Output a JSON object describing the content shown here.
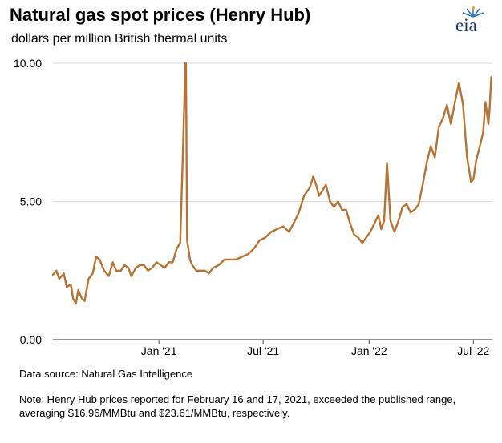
{
  "header": {
    "title": "Natural gas spot prices (Henry Hub)",
    "subtitle": "dollars per million British thermal units",
    "logo_text": "eia"
  },
  "footer": {
    "source": "Data source: Natural Gas Intelligence",
    "note": "Note: Henry Hub prices reported for February 16 and 17, 2021, exceeded the published range, averaging $16.96/MMBtu and $23.61/MMBtu, respectively."
  },
  "colors": {
    "line": "#B87333",
    "axis": "#555555",
    "grid": "#d9d9d9",
    "logo": "#1a3a6b"
  },
  "chart_data": {
    "type": "line",
    "xlabel": "",
    "ylabel": "",
    "ylim": [
      0,
      10
    ],
    "xlim": [
      "2020-07-01",
      "2022-08-03"
    ],
    "y_ticks": [
      {
        "value": 0,
        "label": "0.00"
      },
      {
        "value": 5,
        "label": "5.00"
      },
      {
        "value": 10,
        "label": "10.00"
      }
    ],
    "x_ticks": [
      {
        "value": "2021-01-01",
        "label": "Jan '21"
      },
      {
        "value": "2021-07-01",
        "label": "Jul '21"
      },
      {
        "value": "2022-01-01",
        "label": "Jan '22"
      },
      {
        "value": "2022-07-01",
        "label": "Jul '22"
      }
    ],
    "grid": false,
    "series": [
      {
        "x": [
          "2020-07-01",
          "2020-07-07",
          "2020-07-12",
          "2020-07-20",
          "2020-07-25",
          "2020-08-01",
          "2020-08-05",
          "2020-08-10",
          "2020-08-14",
          "2020-08-20",
          "2020-08-25",
          "2020-09-01",
          "2020-09-08",
          "2020-09-14",
          "2020-09-20",
          "2020-09-28",
          "2020-10-06",
          "2020-10-13",
          "2020-10-19",
          "2020-10-27",
          "2020-11-02",
          "2020-11-09",
          "2020-11-14",
          "2020-11-22",
          "2020-11-29",
          "2020-12-06",
          "2020-12-13",
          "2020-12-20",
          "2020-12-28",
          "2021-01-04",
          "2021-01-11",
          "2021-01-18",
          "2021-01-25",
          "2021-02-01",
          "2021-02-07",
          "2021-02-12",
          "2021-02-16",
          "2021-02-17",
          "2021-02-19",
          "2021-02-24",
          "2021-02-28",
          "2021-03-07",
          "2021-03-15",
          "2021-03-22",
          "2021-03-29",
          "2021-04-05",
          "2021-04-15",
          "2021-04-25",
          "2021-05-05",
          "2021-05-15",
          "2021-05-25",
          "2021-06-05",
          "2021-06-15",
          "2021-06-25",
          "2021-07-05",
          "2021-07-15",
          "2021-07-25",
          "2021-08-05",
          "2021-08-15",
          "2021-08-25",
          "2021-09-01",
          "2021-09-10",
          "2021-09-20",
          "2021-09-26",
          "2021-10-01",
          "2021-10-06",
          "2021-10-12",
          "2021-10-18",
          "2021-10-25",
          "2021-11-01",
          "2021-11-08",
          "2021-11-15",
          "2021-11-22",
          "2021-11-29",
          "2021-12-06",
          "2021-12-13",
          "2021-12-20",
          "2021-12-27",
          "2022-01-03",
          "2022-01-10",
          "2022-01-17",
          "2022-01-22",
          "2022-01-27",
          "2022-02-01",
          "2022-02-07",
          "2022-02-14",
          "2022-02-21",
          "2022-02-28",
          "2022-03-07",
          "2022-03-14",
          "2022-03-21",
          "2022-03-28",
          "2022-04-04",
          "2022-04-11",
          "2022-04-18",
          "2022-04-25",
          "2022-05-02",
          "2022-05-09",
          "2022-05-16",
          "2022-05-23",
          "2022-05-30",
          "2022-06-06",
          "2022-06-13",
          "2022-06-20",
          "2022-06-27",
          "2022-07-01",
          "2022-07-06",
          "2022-07-11",
          "2022-07-18",
          "2022-07-22",
          "2022-07-27",
          "2022-07-29",
          "2022-08-01"
        ],
        "values": [
          2.35,
          2.5,
          2.2,
          2.4,
          1.9,
          2.0,
          1.5,
          1.3,
          1.8,
          1.5,
          1.4,
          2.2,
          2.4,
          3.0,
          2.9,
          2.5,
          2.3,
          2.8,
          2.5,
          2.5,
          2.7,
          2.6,
          2.3,
          2.6,
          2.7,
          2.7,
          2.5,
          2.6,
          2.8,
          2.7,
          2.6,
          2.8,
          2.8,
          3.3,
          3.5,
          7.0,
          10.0,
          10.0,
          3.6,
          2.9,
          2.7,
          2.5,
          2.5,
          2.5,
          2.4,
          2.6,
          2.7,
          2.9,
          2.9,
          2.9,
          3.0,
          3.1,
          3.3,
          3.6,
          3.7,
          3.9,
          4.0,
          4.1,
          3.9,
          4.3,
          4.6,
          5.2,
          5.5,
          5.9,
          5.6,
          5.2,
          5.4,
          5.6,
          5.0,
          4.8,
          5.0,
          4.7,
          4.7,
          4.2,
          3.8,
          3.7,
          3.5,
          3.7,
          3.9,
          4.2,
          4.5,
          4.0,
          4.3,
          6.4,
          4.3,
          3.9,
          4.3,
          4.8,
          4.9,
          4.6,
          4.7,
          4.9,
          5.6,
          6.4,
          7.0,
          6.6,
          7.7,
          8.0,
          8.5,
          7.8,
          8.6,
          9.3,
          8.5,
          6.6,
          5.7,
          5.8,
          6.5,
          6.9,
          7.5,
          8.6,
          7.8,
          8.3,
          9.5
        ]
      }
    ]
  }
}
